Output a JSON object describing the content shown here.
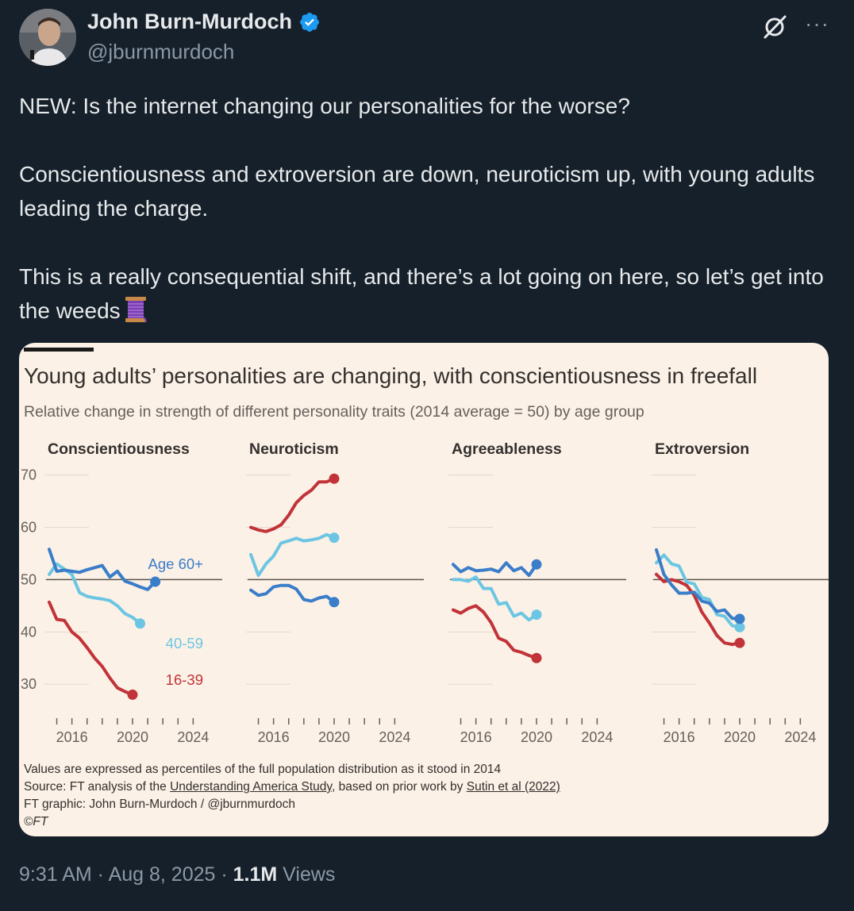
{
  "author": {
    "name": "John Burn-Murdoch",
    "handle": "@jburnmurdoch",
    "verified": true
  },
  "tweet": {
    "line1": "NEW: Is the internet changing our personalities for the worse?",
    "line2": "Conscientiousness and extroversion are down, neuroticism up, with young adults leading the charge.",
    "line3": "This is a really consequential shift, and there’s a lot going on here, so let’s get into the weeds"
  },
  "icons": {
    "grok": "grok-icon",
    "more": "more-icon",
    "verified": "verified-badge-icon",
    "thread": "spool-of-thread-icon"
  },
  "colors": {
    "bg": "#15202b",
    "card_bg": "#fcf1e6",
    "age60": "#3a7dc9",
    "age4059": "#6cc6e3",
    "age1639": "#c13338",
    "verified": "#1d9bf0"
  },
  "meta": {
    "time": "9:31 AM",
    "sep1": " · ",
    "date": "Aug 8, 2025",
    "sep2": " · ",
    "views_count": "1.1M",
    "views_label": " Views"
  },
  "chart_card": {
    "title": "Young adults’ personalities are changing, with conscientiousness in freefall",
    "subtitle": "Relative change in strength of different personality traits (2014 average = 50) by age group",
    "footnote_1": "Values are expressed as percentiles of the full population distribution as it stood in 2014",
    "footnote_2_pre": "Source: FT analysis of the ",
    "footnote_2_link1": "Understanding America Study",
    "footnote_2_mid": ", based on prior work by ",
    "footnote_2_link2": "Sutin et al (2022)",
    "footnote_3": "FT graphic: John Burn-Murdoch / @jburnmurdoch",
    "footnote_4": "©FT"
  },
  "chart_data": {
    "type": "line",
    "title": "Young adults’ personalities are changing, with conscientiousness in freefall",
    "subtitle": "Relative change in strength of different personality traits (2014 average = 50) by age group",
    "ylim": [
      27,
      71
    ],
    "yticks": [
      30,
      40,
      50,
      60,
      70
    ],
    "reference_line": 50,
    "xlim": [
      2014.5,
      2025.5
    ],
    "xticks": [
      2015,
      2016,
      2017,
      2018,
      2019,
      2020,
      2021,
      2022,
      2023,
      2024
    ],
    "xtick_labels": [
      "2016",
      "2020",
      "2024"
    ],
    "xtick_label_values": [
      2016,
      2020,
      2024
    ],
    "x": [
      2014.5,
      2015,
      2015.5,
      2016,
      2016.5,
      2017,
      2017.5,
      2018,
      2018.5,
      2019,
      2019.5,
      2020,
      2020.5,
      2021,
      2021.5,
      2022,
      2022.5,
      2023,
      2023.5,
      2024,
      2024.5,
      2025
    ],
    "panels": [
      {
        "name": "Conscientiousness",
        "labels": [
          {
            "series": "Age 60+",
            "text": "Age 60+"
          },
          {
            "series": "40-59",
            "text": "40-59"
          },
          {
            "series": "16-39",
            "text": "16-39"
          }
        ],
        "series": [
          {
            "name": "Age 60+",
            "values": [
              55.8,
              51.6,
              51.8,
              51.6,
              51.4,
              51.9,
              52.3,
              52.7,
              50.5,
              51.6,
              49.7,
              49.2,
              48.6,
              48.1,
              49.6,
              null,
              null,
              null,
              null,
              null,
              null,
              null
            ]
          },
          {
            "name": "40-59",
            "values": [
              51.0,
              53.0,
              52.0,
              51.0,
              47.5,
              46.8,
              46.5,
              46.3,
              46.0,
              45.0,
              43.5,
              42.8,
              41.6,
              null,
              null,
              null,
              null,
              null,
              null,
              null,
              null,
              null
            ]
          },
          {
            "name": "16-39",
            "values": [
              45.7,
              42.4,
              42.2,
              40.0,
              38.8,
              37.0,
              35.0,
              33.4,
              31.2,
              29.3,
              28.6,
              28.0,
              null,
              null,
              null,
              null,
              null,
              null,
              null,
              null,
              null,
              null
            ]
          }
        ]
      },
      {
        "name": "Neuroticism",
        "series": [
          {
            "name": "Age 60+",
            "values": [
              48.0,
              47.0,
              47.3,
              48.6,
              48.9,
              48.9,
              48.2,
              46.2,
              45.9,
              46.5,
              46.8,
              45.7,
              null,
              null,
              null,
              null,
              null,
              null,
              null,
              null,
              null,
              null
            ]
          },
          {
            "name": "40-59",
            "values": [
              54.8,
              50.8,
              53.0,
              54.5,
              57.0,
              57.4,
              57.9,
              57.4,
              57.6,
              57.9,
              58.6,
              58.0,
              null,
              null,
              null,
              null,
              null,
              null,
              null,
              null,
              null,
              null
            ]
          },
          {
            "name": "16-39",
            "values": [
              60.0,
              59.5,
              59.2,
              59.7,
              60.5,
              62.3,
              64.7,
              66.1,
              67.1,
              68.7,
              68.7,
              69.3,
              null,
              null,
              null,
              null,
              null,
              null,
              null,
              null,
              null,
              null
            ]
          }
        ]
      },
      {
        "name": "Agreeableness",
        "series": [
          {
            "name": "Age 60+",
            "values": [
              52.9,
              51.5,
              52.3,
              51.7,
              51.8,
              52.0,
              51.5,
              53.2,
              51.7,
              52.3,
              50.8,
              52.9,
              null,
              null,
              null,
              null,
              null,
              null,
              null,
              null,
              null,
              null
            ]
          },
          {
            "name": "40-59",
            "values": [
              50.0,
              50.0,
              49.7,
              50.5,
              48.3,
              48.3,
              45.3,
              45.6,
              43.0,
              43.6,
              42.3,
              43.3,
              null,
              null,
              null,
              null,
              null,
              null,
              null,
              null,
              null,
              null
            ]
          },
          {
            "name": "16-39",
            "values": [
              44.2,
              43.6,
              44.5,
              45.0,
              43.8,
              41.8,
              38.8,
              38.2,
              36.5,
              36.1,
              35.5,
              35.0,
              null,
              null,
              null,
              null,
              null,
              null,
              null,
              null,
              null,
              null
            ]
          }
        ]
      },
      {
        "name": "Extroversion",
        "series": [
          {
            "name": "Age 60+",
            "values": [
              55.7,
              51.0,
              49.0,
              47.4,
              47.4,
              47.6,
              45.9,
              45.5,
              43.9,
              44.2,
              42.6,
              42.5,
              null,
              null,
              null,
              null,
              null,
              null,
              null,
              null,
              null,
              null
            ]
          },
          {
            "name": "40-59",
            "values": [
              53.2,
              54.7,
              53.0,
              52.6,
              49.5,
              49.2,
              46.6,
              46.2,
              43.3,
              43.0,
              41.2,
              40.9,
              null,
              null,
              null,
              null,
              null,
              null,
              null,
              null,
              null,
              null
            ]
          },
          {
            "name": "16-39",
            "values": [
              51.0,
              49.6,
              50.0,
              49.6,
              48.9,
              47.0,
              43.8,
              41.7,
              39.3,
              37.9,
              37.6,
              37.9,
              null,
              null,
              null,
              null,
              null,
              null,
              null,
              null,
              null,
              null
            ]
          }
        ]
      }
    ]
  }
}
